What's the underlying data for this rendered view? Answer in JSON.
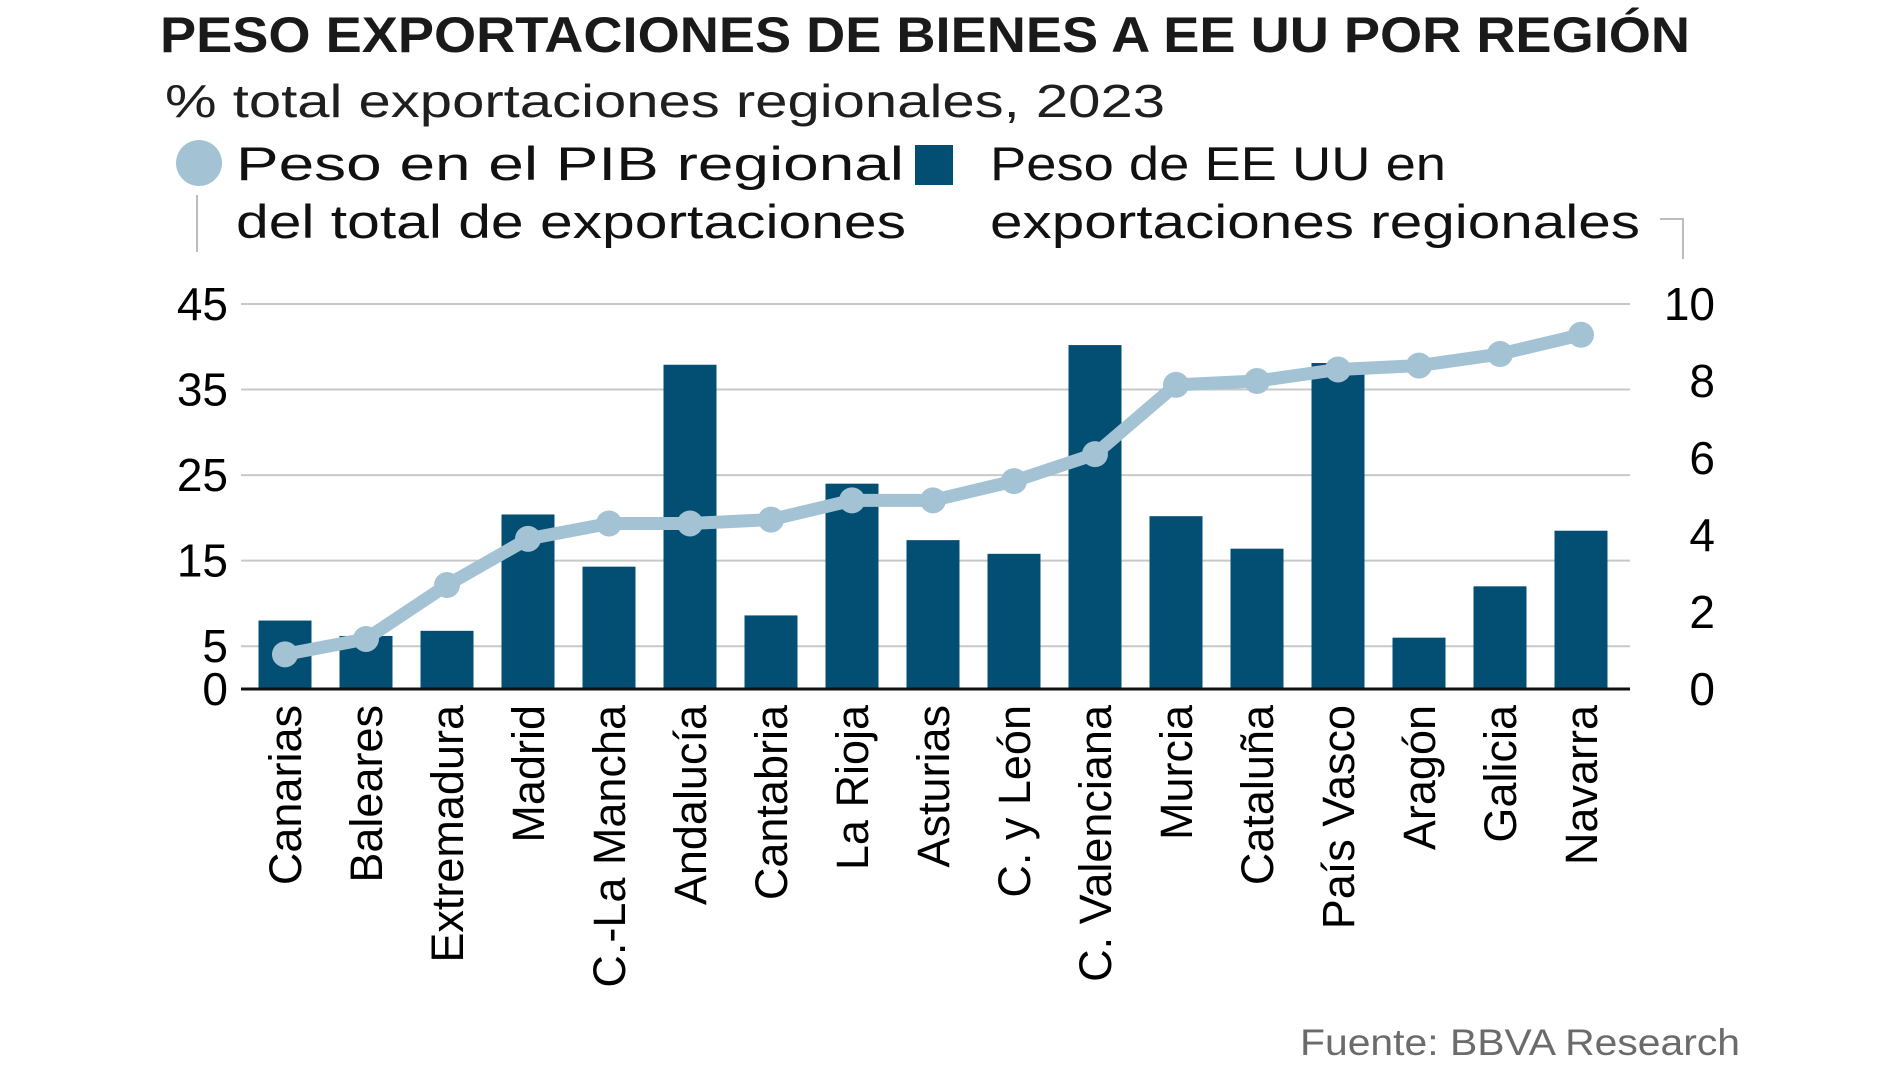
{
  "chart_data": {
    "type": "bar",
    "title": "PESO EXPORTACIONES DE BIENES A EE UU POR REGIÓN",
    "subtitle": "% total exportaciones regionales, 2023",
    "source": "Fuente: BBVA Research",
    "categories": [
      "Canarias",
      "Baleares",
      "Extremadura",
      "Madrid",
      "C.-La Mancha",
      "Andalucía",
      "Cantabria",
      "La Rioja",
      "Asturias",
      "C. y León",
      "C. Valenciana",
      "Murcia",
      "Cataluña",
      "País Vasco",
      "Aragón",
      "Galicia",
      "Navarra"
    ],
    "series": [
      {
        "name": "Peso de EE UU en exportaciones regionales",
        "legend_lines": [
          "Peso de EE UU en",
          "exportaciones regionales"
        ],
        "type": "bar",
        "axis": "left",
        "color": "#034f73",
        "values": [
          8.0,
          6.2,
          6.8,
          20.4,
          14.3,
          37.9,
          8.6,
          24.0,
          17.4,
          15.8,
          40.2,
          20.2,
          16.4,
          38.1,
          6.0,
          12.0,
          18.5
        ]
      },
      {
        "name": "Peso en el PIB regional del total de exportaciones",
        "legend_lines": [
          "Peso en el PIB regional",
          "del total de exportaciones"
        ],
        "type": "line",
        "axis": "right",
        "color": "#a3c3d5",
        "values": [
          0.9,
          1.3,
          2.7,
          3.9,
          4.3,
          4.3,
          4.4,
          4.9,
          4.9,
          5.4,
          6.1,
          7.9,
          8.0,
          8.3,
          8.4,
          8.7,
          9.2
        ]
      }
    ],
    "left_axis": {
      "ylim": [
        0,
        45
      ],
      "ticks": [
        "0",
        "5",
        "15",
        "25",
        "35",
        "45"
      ]
    },
    "right_axis": {
      "ylim": [
        0,
        10
      ],
      "ticks": [
        "0",
        "2",
        "4",
        "6",
        "8",
        "10"
      ]
    },
    "grid": true,
    "legend_position": "top"
  }
}
